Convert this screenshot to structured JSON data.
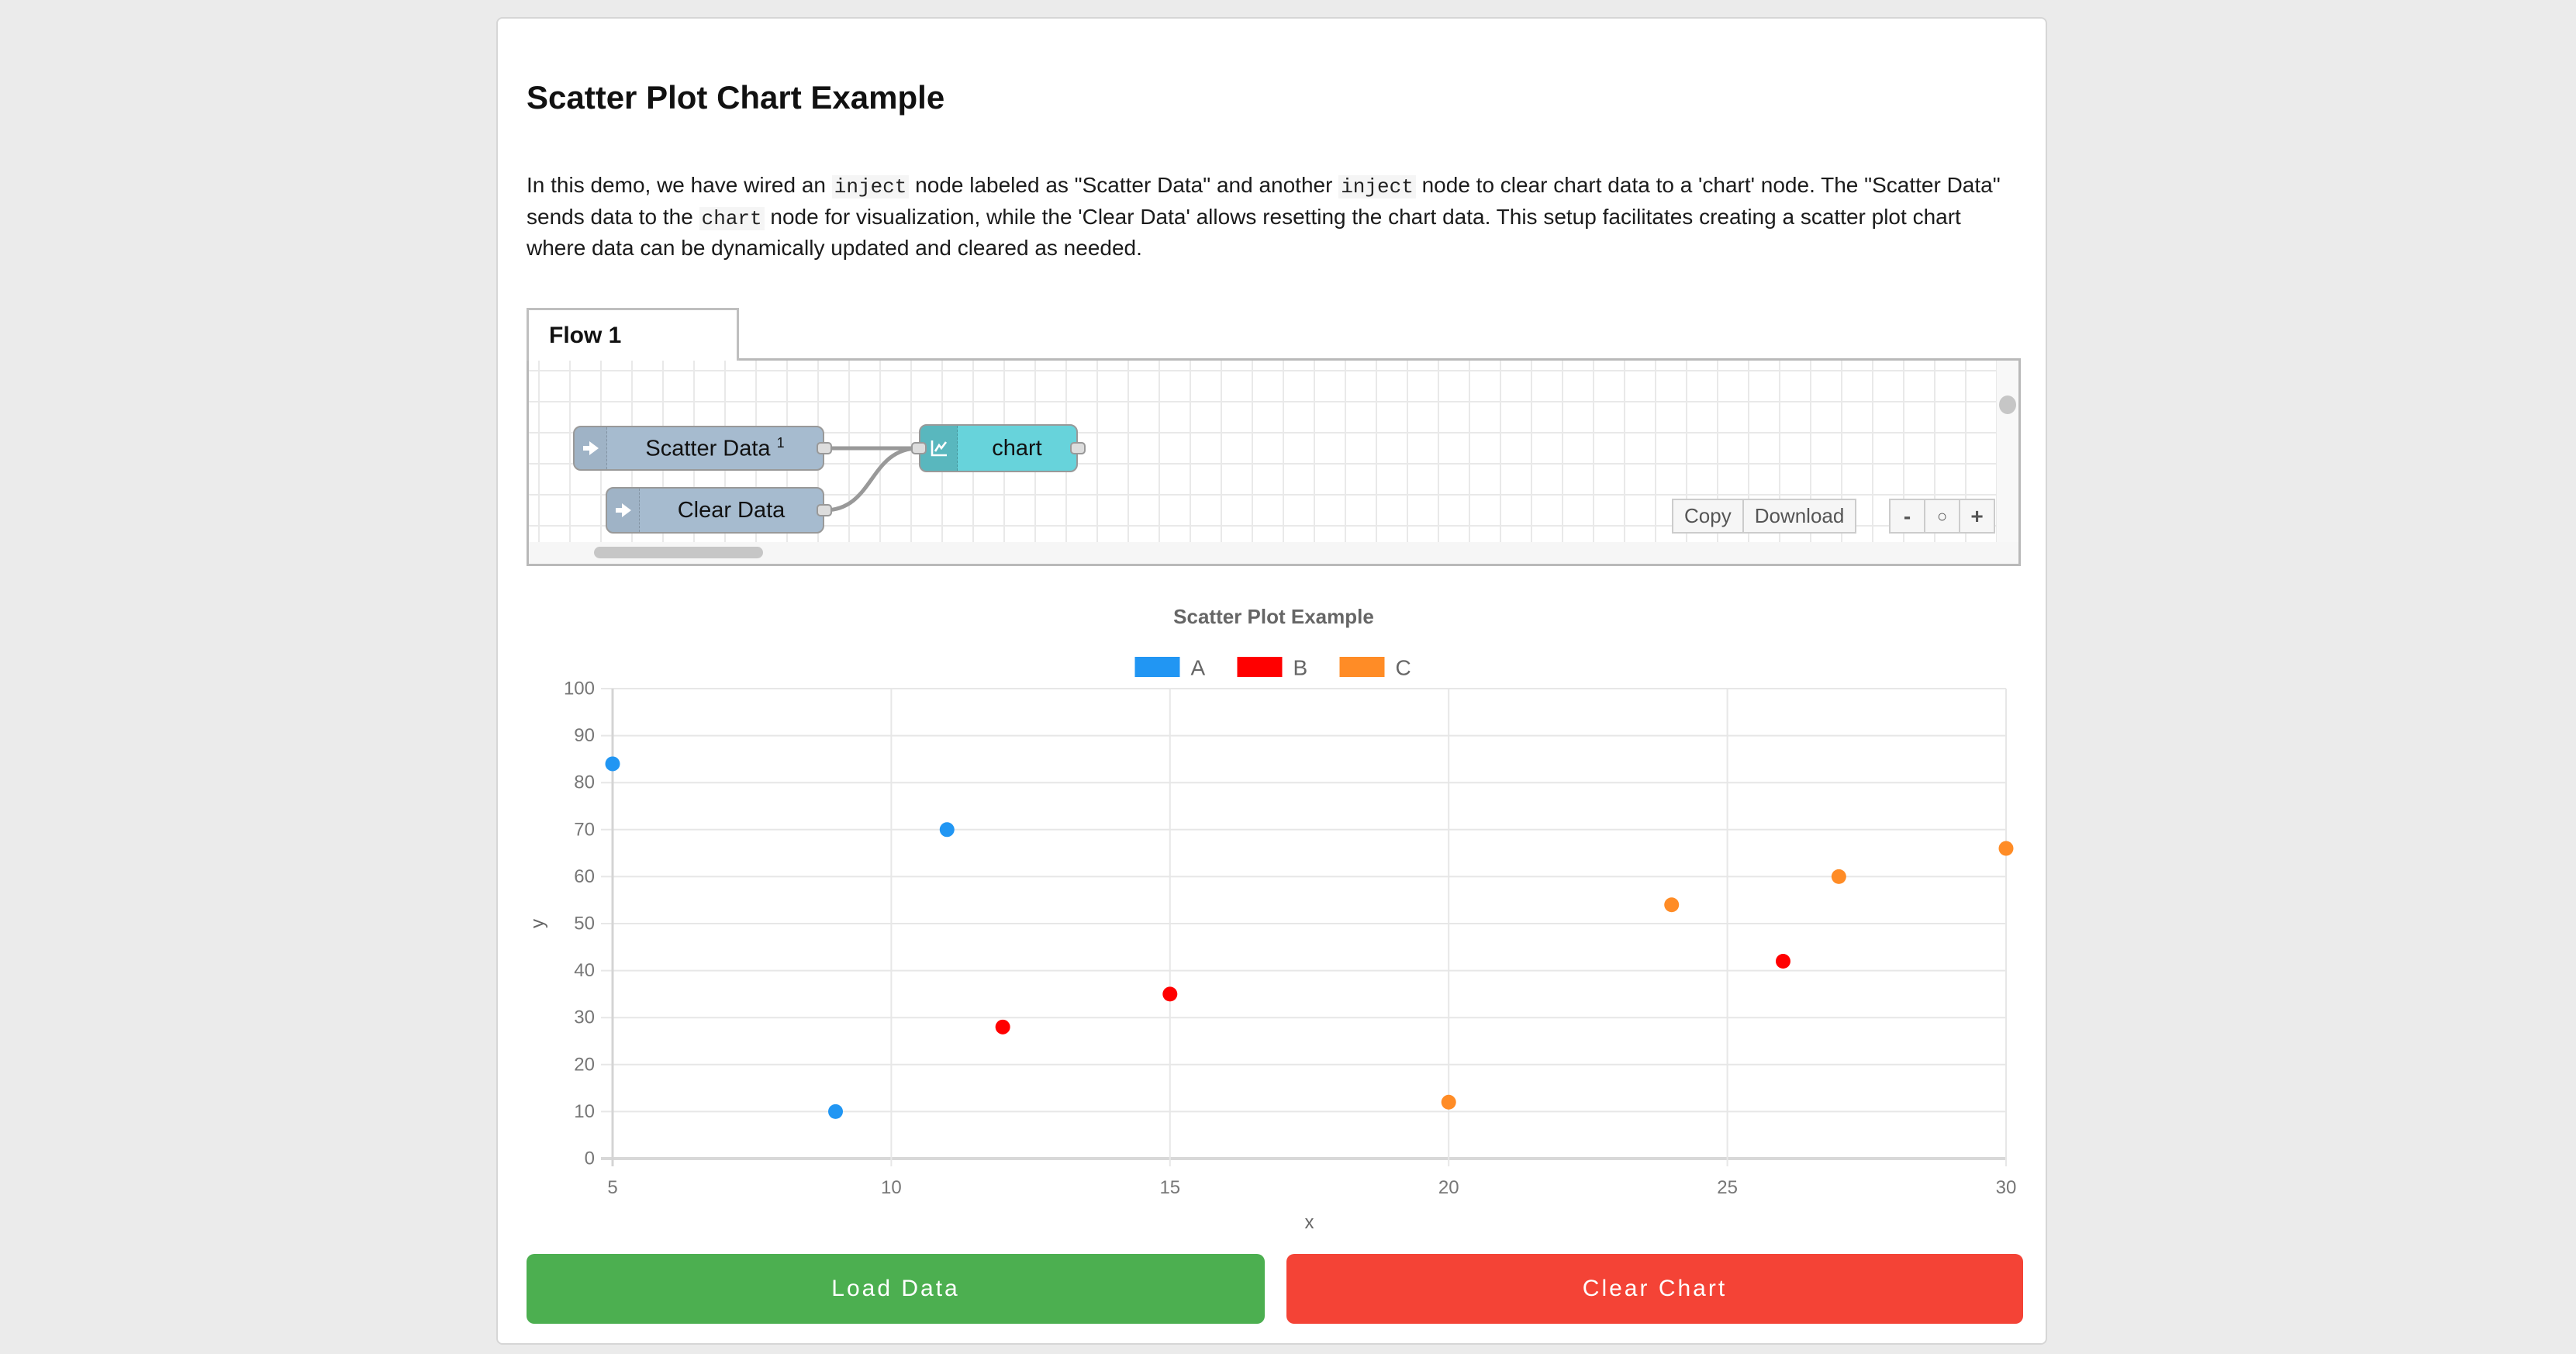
{
  "page": {
    "background": "#ebebeb"
  },
  "article": {
    "title": "Scatter Plot Chart Example",
    "intro": {
      "part1": "In this demo, we have wired an ",
      "code1": "inject",
      "part2": " node labeled as \"Scatter Data\" and another ",
      "code2": "inject",
      "part3": " node to clear chart data to a 'chart' node. The \"Scatter Data\" sends data to the ",
      "code3": "chart",
      "part4": " node for visualization, while the 'Clear Data' allows resetting the chart data. This setup facilitates creating a scatter plot chart where data can be dynamically updated and cleared as needed."
    }
  },
  "flow_editor": {
    "tab_label": "Flow 1",
    "nodes": {
      "scatter_inject": {
        "label": "Scatter Data",
        "badge": "1",
        "type": "inject",
        "color": "#a6bbcf"
      },
      "clear_inject": {
        "label": "Clear Data",
        "type": "inject",
        "color": "#a6bbcf"
      },
      "chart": {
        "label": "chart",
        "type": "chart",
        "color": "#67d3db"
      }
    },
    "toolbar": {
      "copy": "Copy",
      "download": "Download"
    },
    "zoom_controls": {
      "zoom_out": "-",
      "zoom_reset": "○",
      "zoom_in": "+"
    }
  },
  "chart_data": {
    "type": "scatter",
    "title": "Scatter Plot Example",
    "xlabel": "x",
    "ylabel": "y",
    "xlim": [
      5,
      30
    ],
    "ylim": [
      0,
      100
    ],
    "x_ticks": [
      5,
      10,
      15,
      20,
      25,
      30
    ],
    "y_ticks": [
      0,
      10,
      20,
      30,
      40,
      50,
      60,
      70,
      80,
      90,
      100
    ],
    "grid": true,
    "legend_position": "top",
    "series": [
      {
        "name": "A",
        "color": "#2196F3",
        "points": [
          [
            5,
            84
          ],
          [
            9,
            10
          ],
          [
            11,
            70
          ]
        ]
      },
      {
        "name": "B",
        "color": "#FF0000",
        "points": [
          [
            12,
            28
          ],
          [
            15,
            35
          ],
          [
            26,
            42
          ]
        ]
      },
      {
        "name": "C",
        "color": "#FF8C26",
        "points": [
          [
            20,
            12
          ],
          [
            24,
            54
          ],
          [
            27,
            60
          ],
          [
            30,
            66
          ]
        ]
      }
    ]
  },
  "actions": {
    "load": {
      "label": "Load Data",
      "color": "#4CAF50"
    },
    "clear": {
      "label": "Clear Chart",
      "color": "#F44336"
    }
  }
}
